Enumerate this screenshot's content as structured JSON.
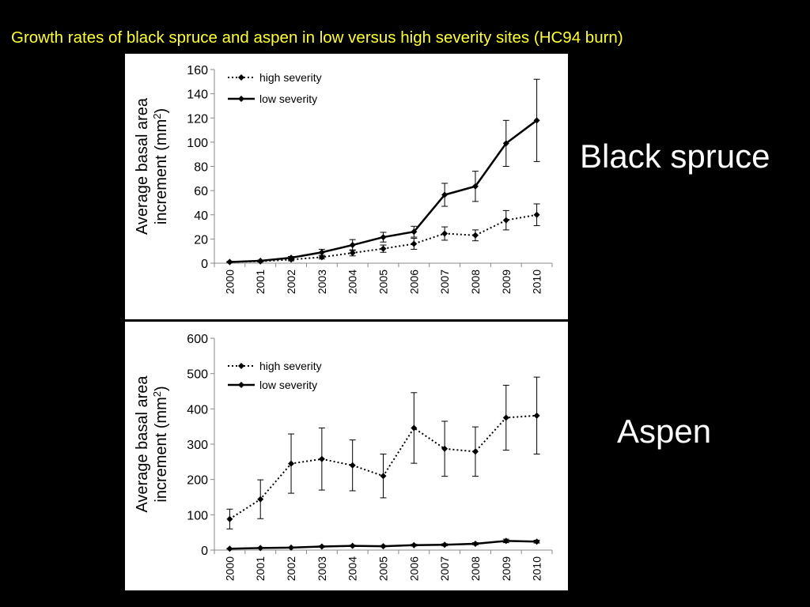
{
  "slide": {
    "title": "Growth rates of black spruce and aspen in low versus high severity sites (HC94 burn)",
    "spruce_label": "Black spruce",
    "aspen_label": "Aspen",
    "title_color": "#ffff33",
    "background": "#000000"
  },
  "chart_data": [
    {
      "type": "line",
      "title": "",
      "xlabel": "",
      "ylabel": "Average basal area increment (mm²)",
      "ylabel_lines": [
        "Average basal area",
        "increment (mm",
        "2",
        ")"
      ],
      "categories": [
        "2000",
        "2001",
        "2002",
        "2003",
        "2004",
        "2005",
        "2006",
        "2007",
        "2008",
        "2009",
        "2010"
      ],
      "ylim": [
        0,
        160
      ],
      "yticks": [
        0,
        20,
        40,
        60,
        80,
        100,
        120,
        140,
        160
      ],
      "legend": "top-left",
      "grid": false,
      "series": [
        {
          "name": "high severity",
          "style": "dotted",
          "values": [
            1,
            1.5,
            3,
            5,
            8.5,
            12,
            16,
            24.5,
            23,
            35.5,
            40
          ],
          "errors": [
            0.3,
            0.5,
            1,
            1.5,
            2.5,
            3,
            4.5,
            5.5,
            4.5,
            8,
            9
          ]
        },
        {
          "name": "low severity",
          "style": "solid",
          "values": [
            1,
            2,
            4.5,
            9,
            15,
            21.5,
            26,
            56.5,
            63.5,
            99,
            118
          ],
          "errors": [
            0.5,
            0.5,
            1,
            2.5,
            4.5,
            4,
            4.5,
            9.5,
            12.5,
            19,
            34
          ]
        }
      ]
    },
    {
      "type": "line",
      "title": "",
      "xlabel": "",
      "ylabel": "Average basal area increment (mm²)",
      "ylabel_lines": [
        "Average basal area",
        "increment (mm",
        "2",
        ")"
      ],
      "categories": [
        "2000",
        "2001",
        "2002",
        "2003",
        "2004",
        "2005",
        "2006",
        "2007",
        "2008",
        "2009",
        "2010"
      ],
      "ylim": [
        0,
        600
      ],
      "yticks": [
        0,
        100,
        200,
        300,
        400,
        500,
        600
      ],
      "legend": "top-left",
      "grid": false,
      "series": [
        {
          "name": "high severity",
          "style": "dotted",
          "values": [
            88,
            144,
            245,
            258,
            240,
            210,
            346,
            287,
            279,
            375,
            381
          ],
          "errors": [
            28,
            55,
            84,
            88,
            72,
            62,
            100,
            78,
            70,
            92,
            109
          ]
        },
        {
          "name": "low severity",
          "style": "solid",
          "values": [
            4,
            6,
            7,
            10,
            12,
            11,
            14,
            15,
            18,
            26,
            24
          ],
          "errors": [
            1,
            1,
            1.5,
            2,
            2,
            2,
            2.5,
            3,
            3,
            5,
            4
          ]
        }
      ]
    }
  ]
}
